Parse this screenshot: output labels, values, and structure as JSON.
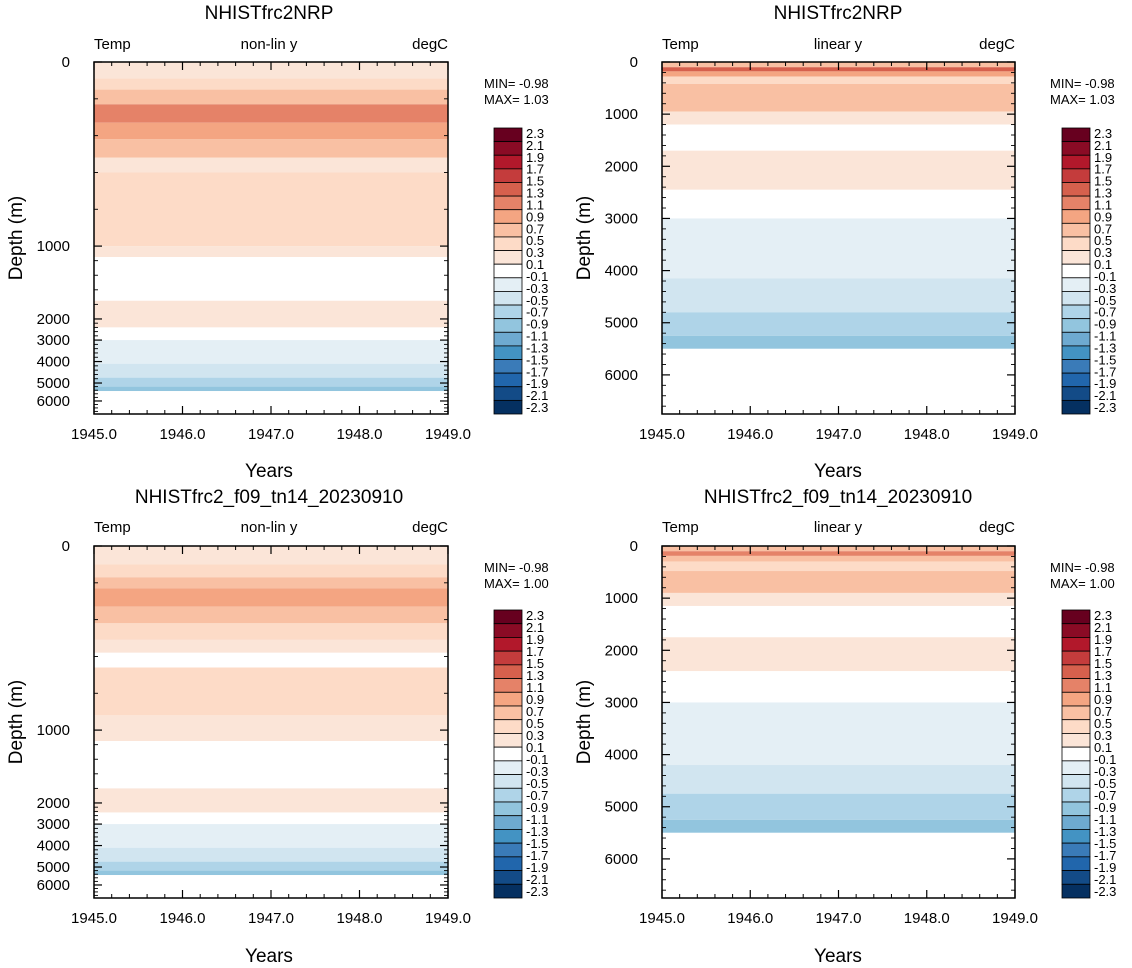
{
  "colors": {
    "palette": [
      "#053061",
      "#134b87",
      "#2166ac",
      "#3a7bb8",
      "#4393c3",
      "#6eaad0",
      "#92c5de",
      "#afd4e8",
      "#d1e5f0",
      "#e4eff5",
      "#ffffff",
      "#fbe5d8",
      "#fddbc7",
      "#f9c0a3",
      "#f4a582",
      "#e58268",
      "#d6604d",
      "#c43c3c",
      "#b2182b",
      "#8a0b25",
      "#67001f"
    ]
  },
  "chart_data": [
    {
      "id": "p1",
      "type": "filled-contour",
      "title": "NHISTfrc2NRP",
      "subtitle_left": "Temp",
      "subtitle_center": "non-lin y",
      "subtitle_right": "degC",
      "xlabel": "Years",
      "ylabel": "Depth (m)",
      "xlim": [
        1945.0,
        1949.0
      ],
      "xticks": [
        "1945.0",
        "1946.0",
        "1947.0",
        "1948.0",
        "1949.0"
      ],
      "yscale": "non-linear",
      "yticks": [
        "0",
        "1000",
        "2000",
        "3000",
        "4000",
        "5000",
        "6000"
      ],
      "stats": {
        "min": "MIN= -0.98",
        "max": "MAX=  1.03"
      },
      "bands": [
        {
          "top": 0,
          "bottom": 90,
          "color_index": 11
        },
        {
          "top": 90,
          "bottom": 150,
          "color_index": 12
        },
        {
          "top": 150,
          "bottom": 230,
          "color_index": 13
        },
        {
          "top": 230,
          "bottom": 330,
          "color_index": 15
        },
        {
          "top": 330,
          "bottom": 420,
          "color_index": 14
        },
        {
          "top": 420,
          "bottom": 520,
          "color_index": 13
        },
        {
          "top": 520,
          "bottom": 600,
          "color_index": 11
        },
        {
          "top": 600,
          "bottom": 1000,
          "color_index": 12
        },
        {
          "top": 1000,
          "bottom": 1150,
          "color_index": 11
        },
        {
          "top": 1150,
          "bottom": 1750,
          "color_index": 10
        },
        {
          "top": 1750,
          "bottom": 2400,
          "color_index": 11
        },
        {
          "top": 2400,
          "bottom": 3000,
          "color_index": 10
        },
        {
          "top": 3000,
          "bottom": 4100,
          "color_index": 9
        },
        {
          "top": 4100,
          "bottom": 4750,
          "color_index": 8
        },
        {
          "top": 4750,
          "bottom": 5200,
          "color_index": 7
        },
        {
          "top": 5200,
          "bottom": 5450,
          "color_index": 6
        },
        {
          "top": 5450,
          "bottom": 6750,
          "color_index": 10
        }
      ]
    },
    {
      "id": "p2",
      "type": "filled-contour",
      "title": "NHISTfrc2NRP",
      "subtitle_left": "Temp",
      "subtitle_center": "linear y",
      "subtitle_right": "degC",
      "xlabel": "Years",
      "ylabel": "Depth (m)",
      "xlim": [
        1945.0,
        1949.0
      ],
      "xticks": [
        "1945.0",
        "1946.0",
        "1947.0",
        "1948.0",
        "1949.0"
      ],
      "yscale": "linear",
      "yticks": [
        "0",
        "1000",
        "2000",
        "3000",
        "4000",
        "5000",
        "6000"
      ],
      "stats": {
        "min": "MIN= -0.98",
        "max": "MAX=  1.03"
      },
      "bands": [
        {
          "top": 0,
          "bottom": 100,
          "color_index": 13
        },
        {
          "top": 100,
          "bottom": 180,
          "color_index": 16
        },
        {
          "top": 180,
          "bottom": 280,
          "color_index": 14
        },
        {
          "top": 280,
          "bottom": 420,
          "color_index": 12
        },
        {
          "top": 420,
          "bottom": 950,
          "color_index": 13
        },
        {
          "top": 950,
          "bottom": 1200,
          "color_index": 11
        },
        {
          "top": 1200,
          "bottom": 1700,
          "color_index": 10
        },
        {
          "top": 1700,
          "bottom": 2450,
          "color_index": 11
        },
        {
          "top": 2450,
          "bottom": 3000,
          "color_index": 10
        },
        {
          "top": 3000,
          "bottom": 4150,
          "color_index": 9
        },
        {
          "top": 4150,
          "bottom": 4800,
          "color_index": 8
        },
        {
          "top": 4800,
          "bottom": 5250,
          "color_index": 7
        },
        {
          "top": 5250,
          "bottom": 5500,
          "color_index": 6
        },
        {
          "top": 5500,
          "bottom": 6750,
          "color_index": 10
        }
      ]
    },
    {
      "id": "p3",
      "type": "filled-contour",
      "title": "NHISTfrc2_f09_tn14_20230910",
      "subtitle_left": "Temp",
      "subtitle_center": "non-lin y",
      "subtitle_right": "degC",
      "xlabel": "Years",
      "ylabel": "Depth (m)",
      "xlim": [
        1945.0,
        1949.0
      ],
      "xticks": [
        "1945.0",
        "1946.0",
        "1947.0",
        "1948.0",
        "1949.0"
      ],
      "yscale": "non-linear",
      "yticks": [
        "0",
        "1000",
        "2000",
        "3000",
        "4000",
        "5000",
        "6000"
      ],
      "stats": {
        "min": "MIN= -0.98",
        "max": "MAX=  1.00"
      },
      "bands": [
        {
          "top": 0,
          "bottom": 100,
          "color_index": 11
        },
        {
          "top": 100,
          "bottom": 170,
          "color_index": 12
        },
        {
          "top": 170,
          "bottom": 230,
          "color_index": 13
        },
        {
          "top": 230,
          "bottom": 330,
          "color_index": 14
        },
        {
          "top": 330,
          "bottom": 420,
          "color_index": 13
        },
        {
          "top": 420,
          "bottom": 510,
          "color_index": 12
        },
        {
          "top": 510,
          "bottom": 580,
          "color_index": 11
        },
        {
          "top": 580,
          "bottom": 660,
          "color_index": 10
        },
        {
          "top": 660,
          "bottom": 920,
          "color_index": 12
        },
        {
          "top": 920,
          "bottom": 1150,
          "color_index": 11
        },
        {
          "top": 1150,
          "bottom": 1800,
          "color_index": 10
        },
        {
          "top": 1800,
          "bottom": 2450,
          "color_index": 11
        },
        {
          "top": 2450,
          "bottom": 3000,
          "color_index": 10
        },
        {
          "top": 3000,
          "bottom": 4100,
          "color_index": 9
        },
        {
          "top": 4100,
          "bottom": 4750,
          "color_index": 8
        },
        {
          "top": 4750,
          "bottom": 5200,
          "color_index": 7
        },
        {
          "top": 5200,
          "bottom": 5450,
          "color_index": 6
        },
        {
          "top": 5450,
          "bottom": 6750,
          "color_index": 10
        }
      ]
    },
    {
      "id": "p4",
      "type": "filled-contour",
      "title": "NHISTfrc2_f09_tn14_20230910",
      "subtitle_left": "Temp",
      "subtitle_center": "linear y",
      "subtitle_right": "degC",
      "xlabel": "Years",
      "ylabel": "Depth (m)",
      "xlim": [
        1945.0,
        1949.0
      ],
      "xticks": [
        "1945.0",
        "1946.0",
        "1947.0",
        "1948.0",
        "1949.0"
      ],
      "yscale": "linear",
      "yticks": [
        "0",
        "1000",
        "2000",
        "3000",
        "4000",
        "5000",
        "6000"
      ],
      "stats": {
        "min": "MIN= -0.98",
        "max": "MAX=  1.00"
      },
      "bands": [
        {
          "top": 0,
          "bottom": 100,
          "color_index": 13
        },
        {
          "top": 100,
          "bottom": 190,
          "color_index": 15
        },
        {
          "top": 190,
          "bottom": 300,
          "color_index": 13
        },
        {
          "top": 300,
          "bottom": 480,
          "color_index": 12
        },
        {
          "top": 480,
          "bottom": 900,
          "color_index": 13
        },
        {
          "top": 900,
          "bottom": 1150,
          "color_index": 11
        },
        {
          "top": 1150,
          "bottom": 1750,
          "color_index": 10
        },
        {
          "top": 1750,
          "bottom": 2400,
          "color_index": 11
        },
        {
          "top": 2400,
          "bottom": 3000,
          "color_index": 10
        },
        {
          "top": 3000,
          "bottom": 4200,
          "color_index": 9
        },
        {
          "top": 4200,
          "bottom": 4750,
          "color_index": 8
        },
        {
          "top": 4750,
          "bottom": 5250,
          "color_index": 7
        },
        {
          "top": 5250,
          "bottom": 5500,
          "color_index": 6
        },
        {
          "top": 5500,
          "bottom": 6750,
          "color_index": 10
        }
      ]
    }
  ],
  "colorbar": {
    "labels": [
      "2.3",
      "2.1",
      "1.9",
      "1.7",
      "1.5",
      "1.3",
      "1.1",
      "0.9",
      "0.7",
      "0.5",
      "0.3",
      "0.1",
      "-0.1",
      "-0.3",
      "-0.5",
      "-0.7",
      "-0.9",
      "-1.1",
      "-1.3",
      "-1.5",
      "-1.7",
      "-1.9",
      "-2.1",
      "-2.3"
    ]
  }
}
